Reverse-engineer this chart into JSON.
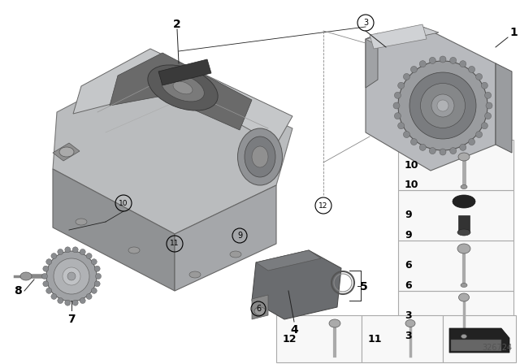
{
  "background_color": "#ffffff",
  "diagram_id": "326724",
  "line_color": "#222222",
  "gray_light": "#c8c8c8",
  "gray_mid": "#a0a0a0",
  "gray_dark": "#707070",
  "gray_darker": "#555555",
  "gray_body": "#b0b2b5",
  "gray_shadow": "#888888",
  "label_fs": 9,
  "callout_fs": 7.5,
  "strip_label_fs": 9
}
